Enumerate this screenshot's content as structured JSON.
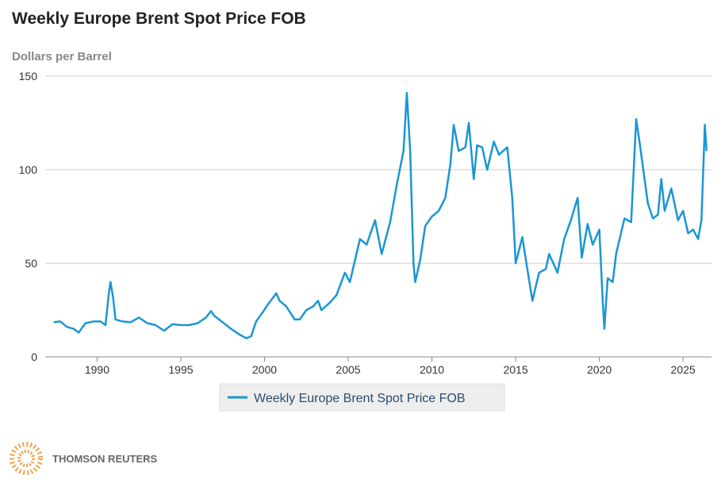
{
  "chart_data": {
    "type": "line",
    "title": "Weekly Europe Brent Spot Price FOB",
    "y_label": "Dollars per Barrel",
    "x": [
      1987.4,
      1987.8,
      1988.2,
      1988.6,
      1988.9,
      1989.3,
      1989.8,
      1990.2,
      1990.5,
      1990.7,
      1990.8,
      1990.95,
      1991.1,
      1991.5,
      1992,
      1992.5,
      1993,
      1993.5,
      1994,
      1994.5,
      1995,
      1995.5,
      1996,
      1996.5,
      1996.8,
      1997,
      1997.5,
      1998,
      1998.5,
      1998.9,
      1999.2,
      1999.5,
      1999.9,
      2000.2,
      2000.7,
      2000.9,
      2001.3,
      2001.8,
      2002.1,
      2002.5,
      2002.9,
      2003.2,
      2003.4,
      2003.9,
      2004.3,
      2004.8,
      2005.1,
      2005.7,
      2006.1,
      2006.6,
      2007,
      2007.5,
      2007.9,
      2008.3,
      2008.5,
      2008.7,
      2008.9,
      2009,
      2009.3,
      2009.6,
      2010,
      2010.4,
      2010.8,
      2011.1,
      2011.3,
      2011.6,
      2012,
      2012.2,
      2012.5,
      2012.7,
      2013,
      2013.3,
      2013.7,
      2014,
      2014.5,
      2014.8,
      2015,
      2015.4,
      2015.7,
      2016,
      2016.4,
      2016.8,
      2017,
      2017.5,
      2017.9,
      2018.3,
      2018.7,
      2018.95,
      2019.3,
      2019.6,
      2020,
      2020.2,
      2020.3,
      2020.5,
      2020.8,
      2021,
      2021.5,
      2021.9,
      2022.2,
      2022.4,
      2022.7,
      2022.9,
      2023.2,
      2023.5,
      2023.7,
      2023.9,
      2024.3,
      2024.7,
      2025,
      2025.3,
      2025.6,
      2025.9,
      2026.1,
      2026.3,
      2026.4
    ],
    "series": [
      {
        "name": "Weekly Europe Brent Spot Price FOB",
        "color": "#1a96d4",
        "values": [
          18.5,
          19,
          16,
          15,
          13,
          18,
          19,
          19,
          17,
          34,
          40,
          32,
          20,
          19,
          18.5,
          21,
          18,
          17,
          14,
          17.5,
          17,
          17,
          18,
          21,
          24.5,
          22,
          18.5,
          15,
          12,
          10,
          11,
          19,
          24,
          28,
          34,
          30,
          27,
          20,
          20,
          25,
          27,
          30,
          25,
          29,
          33,
          45,
          40,
          63,
          60,
          73,
          55,
          72,
          92,
          110,
          141,
          110,
          50,
          40,
          52,
          70,
          75,
          78,
          85,
          103,
          124,
          110,
          112,
          125,
          95,
          113,
          112,
          100,
          115,
          108,
          112,
          85,
          50,
          64,
          47,
          30,
          45,
          47,
          55,
          45,
          63,
          73,
          85,
          53,
          71,
          60,
          68,
          30,
          15,
          42,
          40,
          55,
          74,
          72,
          127,
          115,
          95,
          82,
          74,
          76,
          95,
          78,
          90,
          73,
          78,
          66,
          68,
          63,
          73,
          124,
          110
        ]
      }
    ],
    "xlim": [
      1986.9,
      2026.7
    ],
    "xticks": [
      1990,
      1995,
      2000,
      2005,
      2010,
      2015,
      2020,
      2025
    ],
    "ylim": [
      0,
      150
    ],
    "yticks": [
      0,
      50,
      100,
      150
    ],
    "grid": true,
    "legend_position": "bottom"
  },
  "footer": {
    "brand": "THOMSON REUTERS"
  }
}
